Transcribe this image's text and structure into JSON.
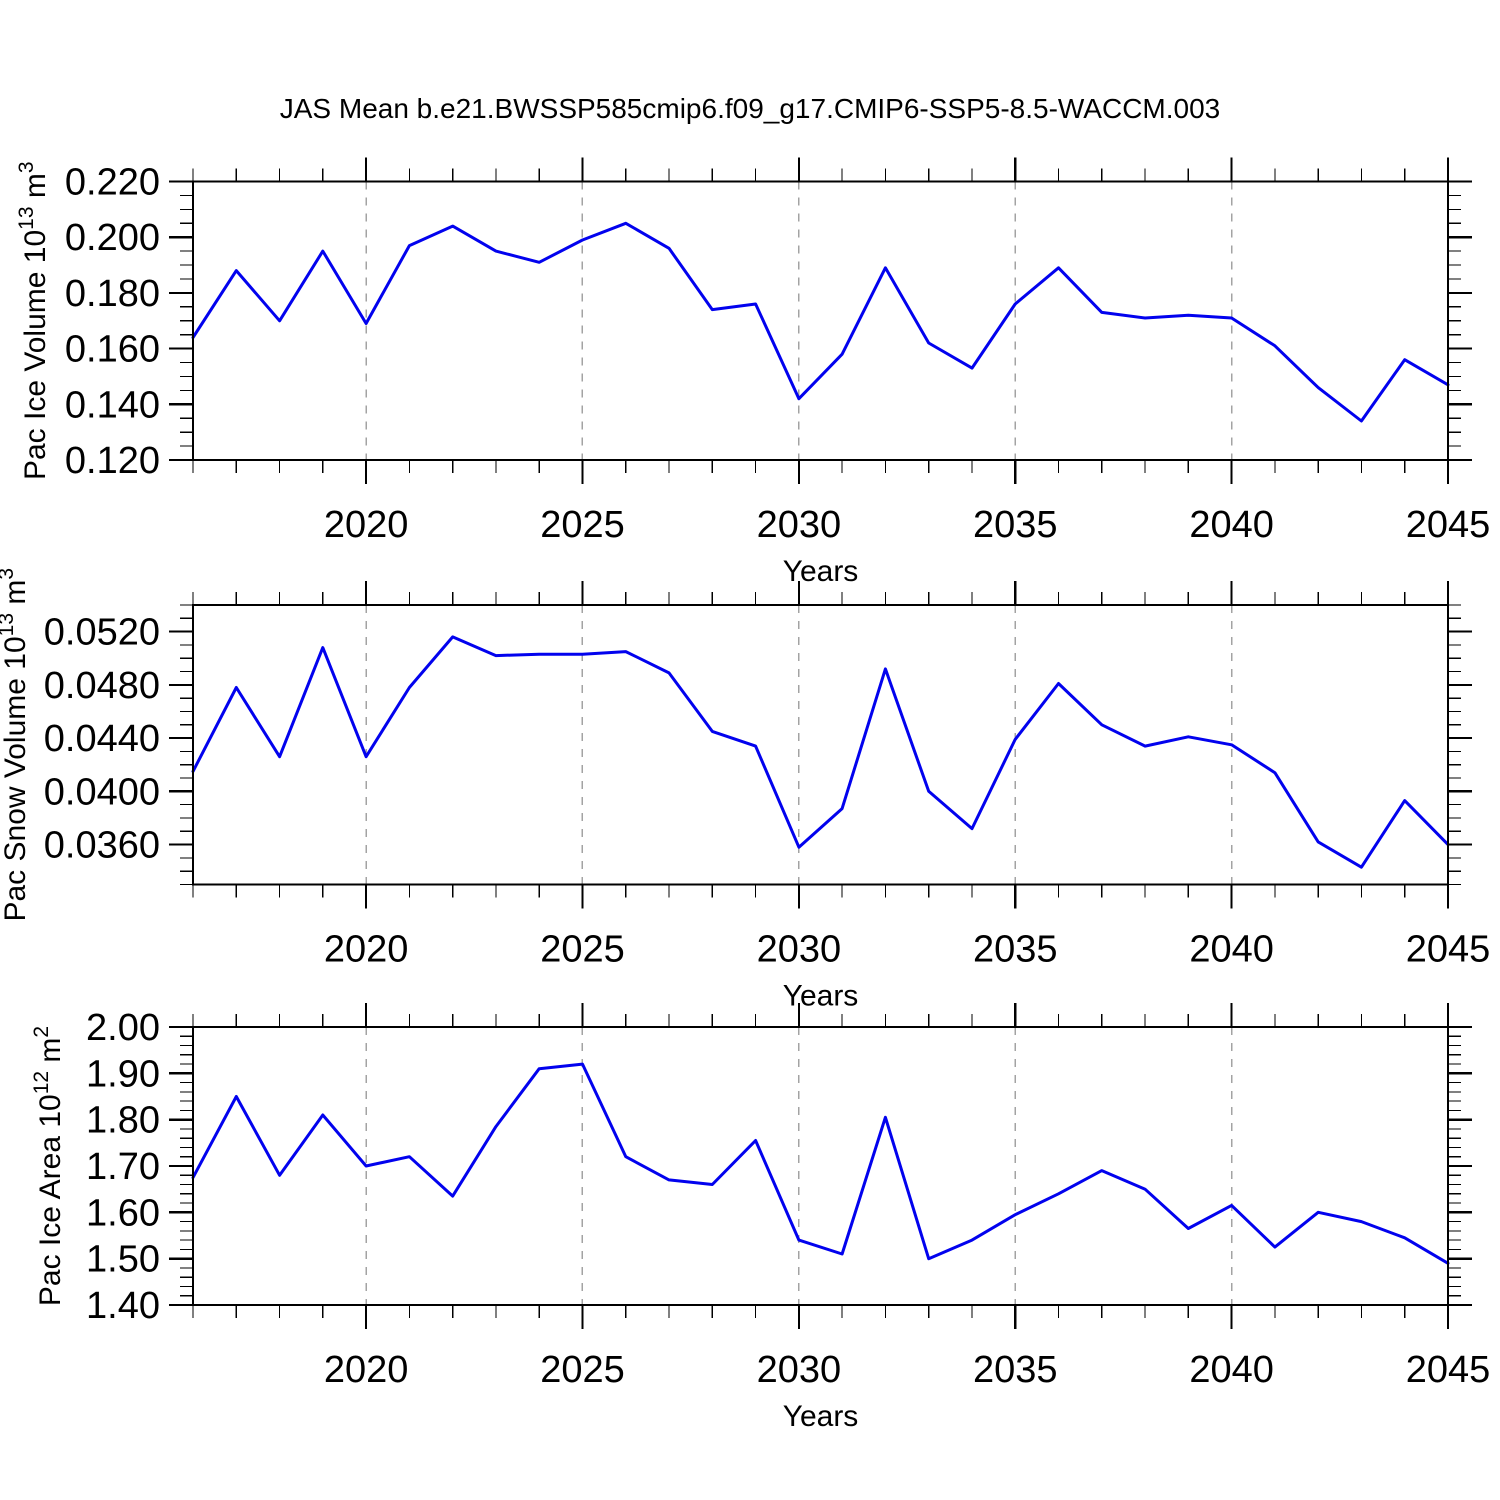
{
  "chart_title": "JAS Mean b.e21.BWSSP585cmip6.f09_g17.CMIP6-SSP5-8.5-WACCM.003",
  "style": {
    "line_color": "#0202ee",
    "grid_color": "#a3a3a3",
    "frame_color": "#000000",
    "background": "#ffffff"
  },
  "chart_data": [
    {
      "type": "line",
      "name": "pac-ice-volume",
      "title": "",
      "ylabel": "Pac Ice Volume 10^13 m^3",
      "xlabel": "Years",
      "x": [
        2016,
        2017,
        2018,
        2019,
        2020,
        2021,
        2022,
        2023,
        2024,
        2025,
        2026,
        2027,
        2028,
        2029,
        2030,
        2031,
        2032,
        2033,
        2034,
        2035,
        2036,
        2037,
        2038,
        2039,
        2040,
        2041,
        2042,
        2043,
        2044,
        2045
      ],
      "values": [
        0.164,
        0.188,
        0.17,
        0.195,
        0.169,
        0.197,
        0.204,
        0.195,
        0.191,
        0.199,
        0.205,
        0.196,
        0.174,
        0.176,
        0.142,
        0.158,
        0.189,
        0.162,
        0.153,
        0.176,
        0.189,
        0.173,
        0.171,
        0.172,
        0.171,
        0.161,
        0.146,
        0.134,
        0.156,
        0.147
      ],
      "xlim": [
        2016,
        2045
      ],
      "xticks": [
        2020,
        2025,
        2030,
        2035,
        2040,
        2045
      ],
      "xtick_labels": [
        "2020",
        "2025",
        "2030",
        "2035",
        "2040",
        "2045"
      ],
      "xminor_step": 1,
      "ylim": [
        0.12,
        0.22
      ],
      "yticks": [
        0.12,
        0.14,
        0.16,
        0.18,
        0.2,
        0.22
      ],
      "ytick_labels": [
        "0.120",
        "0.140",
        "0.160",
        "0.180",
        "0.200",
        "0.220"
      ],
      "yminor_step": 0.005,
      "grid": "vertical-dashed-at-major-xticks",
      "legend": null
    },
    {
      "type": "line",
      "name": "pac-snow-volume",
      "title": "",
      "ylabel": "Pac Snow Volume 10^13 m^3",
      "xlabel": "Years",
      "x": [
        2016,
        2017,
        2018,
        2019,
        2020,
        2021,
        2022,
        2023,
        2024,
        2025,
        2026,
        2027,
        2028,
        2029,
        2030,
        2031,
        2032,
        2033,
        2034,
        2035,
        2036,
        2037,
        2038,
        2039,
        2040,
        2041,
        2042,
        2043,
        2044,
        2045
      ],
      "values": [
        0.0415,
        0.0478,
        0.0426,
        0.0508,
        0.0426,
        0.0478,
        0.0516,
        0.0502,
        0.0503,
        0.0503,
        0.0505,
        0.0489,
        0.0445,
        0.0434,
        0.0358,
        0.0387,
        0.0492,
        0.04,
        0.0372,
        0.0439,
        0.0481,
        0.045,
        0.0434,
        0.0441,
        0.0435,
        0.0414,
        0.0362,
        0.0343,
        0.0393,
        0.036
      ],
      "xlim": [
        2016,
        2045
      ],
      "xticks": [
        2020,
        2025,
        2030,
        2035,
        2040,
        2045
      ],
      "xtick_labels": [
        "2020",
        "2025",
        "2030",
        "2035",
        "2040",
        "2045"
      ],
      "xminor_step": 1,
      "ylim": [
        0.033,
        0.054
      ],
      "yticks": [
        0.036,
        0.04,
        0.044,
        0.048,
        0.052
      ],
      "ytick_labels": [
        "0.0360",
        "0.0400",
        "0.0440",
        "0.0480",
        "0.0520"
      ],
      "yminor_step": 0.001,
      "grid": "vertical-dashed-at-major-xticks",
      "legend": null
    },
    {
      "type": "line",
      "name": "pac-ice-area",
      "title": "",
      "ylabel": "Pac Ice Area 10^12 m^2",
      "xlabel": "Years",
      "x": [
        2016,
        2017,
        2018,
        2019,
        2020,
        2021,
        2022,
        2023,
        2024,
        2025,
        2026,
        2027,
        2028,
        2029,
        2030,
        2031,
        2032,
        2033,
        2034,
        2035,
        2036,
        2037,
        2038,
        2039,
        2040,
        2041,
        2042,
        2043,
        2044,
        2045
      ],
      "values": [
        1.675,
        1.85,
        1.68,
        1.81,
        1.7,
        1.72,
        1.635,
        1.785,
        1.91,
        1.92,
        1.72,
        1.67,
        1.66,
        1.755,
        1.54,
        1.51,
        1.805,
        1.5,
        1.54,
        1.595,
        1.64,
        1.69,
        1.65,
        1.565,
        1.615,
        1.525,
        1.6,
        1.58,
        1.545,
        1.49
      ],
      "xlim": [
        2016,
        2045
      ],
      "xticks": [
        2020,
        2025,
        2030,
        2035,
        2040,
        2045
      ],
      "xtick_labels": [
        "2020",
        "2025",
        "2030",
        "2035",
        "2040",
        "2045"
      ],
      "xminor_step": 1,
      "ylim": [
        1.4,
        2.0
      ],
      "yticks": [
        1.4,
        1.5,
        1.6,
        1.7,
        1.8,
        1.9,
        2.0
      ],
      "ytick_labels": [
        "1.40",
        "1.50",
        "1.60",
        "1.70",
        "1.80",
        "1.90",
        "2.00"
      ],
      "yminor_step": 0.02,
      "grid": "vertical-dashed-at-major-xticks",
      "legend": null
    }
  ]
}
